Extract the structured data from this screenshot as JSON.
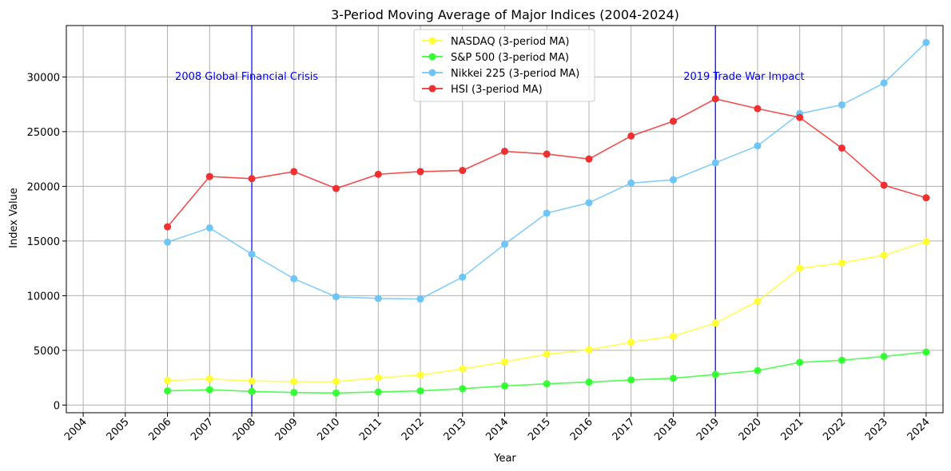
{
  "chart_data": {
    "type": "line",
    "title": "3-Period Moving Average of Major Indices (2004-2024)",
    "xlabel": "Year",
    "ylabel": "Index Value",
    "x": [
      2004,
      2005,
      2006,
      2007,
      2008,
      2009,
      2010,
      2011,
      2012,
      2013,
      2014,
      2015,
      2016,
      2017,
      2018,
      2019,
      2020,
      2021,
      2022,
      2023,
      2024
    ],
    "xlim": [
      2004,
      2024
    ],
    "ylim": [
      0,
      34000
    ],
    "yticks": [
      0,
      5000,
      10000,
      15000,
      20000,
      25000,
      30000
    ],
    "grid": true,
    "legend_position": "top-center",
    "series": [
      {
        "name": "NASDAQ (3-period MA)",
        "color": "#ffff33",
        "values": [
          null,
          null,
          2250,
          2400,
          2200,
          2150,
          2150,
          2500,
          2750,
          3300,
          3950,
          4650,
          5050,
          5750,
          6300,
          7500,
          9500,
          12500,
          13000,
          13700,
          14950
        ]
      },
      {
        "name": "S&P 500 (3-period MA)",
        "color": "#33ff33",
        "values": [
          null,
          null,
          1300,
          1400,
          1250,
          1150,
          1100,
          1200,
          1300,
          1500,
          1750,
          1950,
          2100,
          2300,
          2450,
          2800,
          3150,
          3900,
          4100,
          4450,
          4850
        ]
      },
      {
        "name": "Nikkei 225 (3-period MA)",
        "color": "#6ec6f8",
        "values": [
          null,
          null,
          14900,
          16200,
          13800,
          11550,
          9900,
          9750,
          9700,
          11700,
          14700,
          17550,
          18500,
          20300,
          20600,
          22150,
          23700,
          26650,
          27450,
          29450,
          33150
        ]
      },
      {
        "name": "HSI (3-period MA)",
        "color": "#f03030",
        "values": [
          null,
          null,
          16300,
          20900,
          20700,
          21350,
          19800,
          21100,
          21350,
          21450,
          23200,
          22950,
          22500,
          24600,
          25950,
          28000,
          27100,
          26300,
          23500,
          20100,
          18950
        ]
      }
    ],
    "vlines": [
      {
        "x": 2008,
        "label": "2008 Global Financial Crisis",
        "color": "#0000ff"
      },
      {
        "x": 2019,
        "label": "2019 Trade War Impact",
        "color": "#0000ff"
      }
    ]
  }
}
